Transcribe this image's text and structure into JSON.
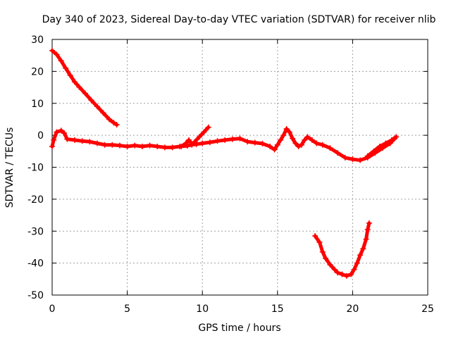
{
  "chart_data": {
    "type": "scatter",
    "title": "Day 340 of 2023, Sidereal Day-to-day VTEC variation (SDTVAR) for receiver nlib",
    "xlabel": "GPS time / hours",
    "ylabel": "SDTVAR / TECUs",
    "xlim": [
      0,
      25
    ],
    "ylim": [
      -50,
      30
    ],
    "x_ticks": [
      0,
      5,
      10,
      15,
      20,
      25
    ],
    "y_ticks": [
      -50,
      -40,
      -30,
      -20,
      -10,
      0,
      10,
      20,
      30
    ],
    "grid": true,
    "marker": "plus",
    "color": "#ff0000",
    "series": [
      {
        "name": "arc-early-descending",
        "points": [
          [
            0.0,
            26.5
          ],
          [
            0.3,
            25.3
          ],
          [
            0.6,
            23.3
          ],
          [
            0.9,
            21.0
          ],
          [
            1.2,
            18.8
          ],
          [
            1.5,
            16.7
          ],
          [
            1.8,
            15.1
          ],
          [
            2.2,
            13.1
          ],
          [
            2.6,
            11.0
          ],
          [
            3.0,
            9.0
          ],
          [
            3.4,
            7.0
          ],
          [
            3.8,
            5.0
          ],
          [
            4.1,
            3.9
          ],
          [
            4.3,
            3.3
          ]
        ]
      },
      {
        "name": "arc-main-band",
        "points": [
          [
            0.0,
            -3.5
          ],
          [
            0.1,
            -1.5
          ],
          [
            0.3,
            1.0
          ],
          [
            0.6,
            1.5
          ],
          [
            0.8,
            0.7
          ],
          [
            1.0,
            -1.2
          ],
          [
            1.5,
            -1.5
          ],
          [
            2.0,
            -1.8
          ],
          [
            2.5,
            -2.0
          ],
          [
            3.0,
            -2.5
          ],
          [
            3.5,
            -3.0
          ],
          [
            4.0,
            -3.0
          ],
          [
            4.5,
            -3.2
          ],
          [
            5.0,
            -3.5
          ],
          [
            5.5,
            -3.2
          ],
          [
            6.0,
            -3.5
          ],
          [
            6.5,
            -3.2
          ],
          [
            7.0,
            -3.5
          ],
          [
            7.5,
            -3.8
          ],
          [
            8.0,
            -3.8
          ],
          [
            8.5,
            -3.5
          ],
          [
            9.0,
            -3.3
          ],
          [
            9.3,
            -3.0
          ],
          [
            9.6,
            -2.8
          ],
          [
            10.0,
            -2.5
          ],
          [
            10.5,
            -2.2
          ],
          [
            11.0,
            -1.8
          ],
          [
            11.5,
            -1.5
          ],
          [
            12.0,
            -1.2
          ],
          [
            12.5,
            -1.0
          ],
          [
            13.0,
            -2.0
          ],
          [
            13.5,
            -2.3
          ],
          [
            14.0,
            -2.6
          ],
          [
            14.5,
            -3.5
          ],
          [
            14.8,
            -4.5
          ],
          [
            15.0,
            -3.0
          ],
          [
            15.2,
            -1.5
          ],
          [
            15.4,
            0.0
          ],
          [
            15.6,
            2.0
          ],
          [
            15.8,
            1.0
          ],
          [
            16.0,
            -1.0
          ],
          [
            16.2,
            -2.5
          ],
          [
            16.4,
            -3.5
          ],
          [
            16.6,
            -3.0
          ],
          [
            16.8,
            -1.5
          ],
          [
            17.0,
            -0.5
          ],
          [
            17.3,
            -1.5
          ],
          [
            17.6,
            -2.5
          ],
          [
            18.0,
            -3.0
          ],
          [
            18.5,
            -4.0
          ],
          [
            19.0,
            -5.5
          ],
          [
            19.5,
            -7.0
          ],
          [
            20.0,
            -7.5
          ],
          [
            20.5,
            -7.8
          ],
          [
            21.0,
            -7.0
          ],
          [
            21.5,
            -5.5
          ],
          [
            22.0,
            -4.0
          ],
          [
            22.5,
            -2.5
          ],
          [
            22.8,
            -1.0
          ]
        ]
      },
      {
        "name": "arc-spike-10h",
        "points": [
          [
            8.6,
            -3.5
          ],
          [
            8.9,
            -2.5
          ],
          [
            9.1,
            -1.5
          ],
          [
            9.3,
            -2.8
          ],
          [
            9.5,
            -2.0
          ],
          [
            9.8,
            -0.5
          ],
          [
            10.1,
            1.0
          ],
          [
            10.4,
            2.5
          ]
        ]
      },
      {
        "name": "arc-late-secondary",
        "points": [
          [
            21.0,
            -6.5
          ],
          [
            21.4,
            -5.0
          ],
          [
            21.8,
            -3.5
          ],
          [
            22.2,
            -2.5
          ],
          [
            22.6,
            -1.5
          ],
          [
            22.9,
            -0.5
          ]
        ]
      },
      {
        "name": "arc-late-dip",
        "points": [
          [
            17.5,
            -31.5
          ],
          [
            17.8,
            -33.5
          ],
          [
            18.0,
            -36.5
          ],
          [
            18.2,
            -38.5
          ],
          [
            18.5,
            -40.5
          ],
          [
            18.8,
            -42.0
          ],
          [
            19.0,
            -43.0
          ],
          [
            19.3,
            -43.5
          ],
          [
            19.6,
            -44.0
          ],
          [
            19.9,
            -43.5
          ],
          [
            20.1,
            -42.0
          ],
          [
            20.3,
            -40.0
          ],
          [
            20.5,
            -37.5
          ],
          [
            20.7,
            -35.5
          ],
          [
            20.9,
            -32.5
          ],
          [
            21.0,
            -29.5
          ],
          [
            21.1,
            -27.5
          ]
        ]
      }
    ]
  }
}
